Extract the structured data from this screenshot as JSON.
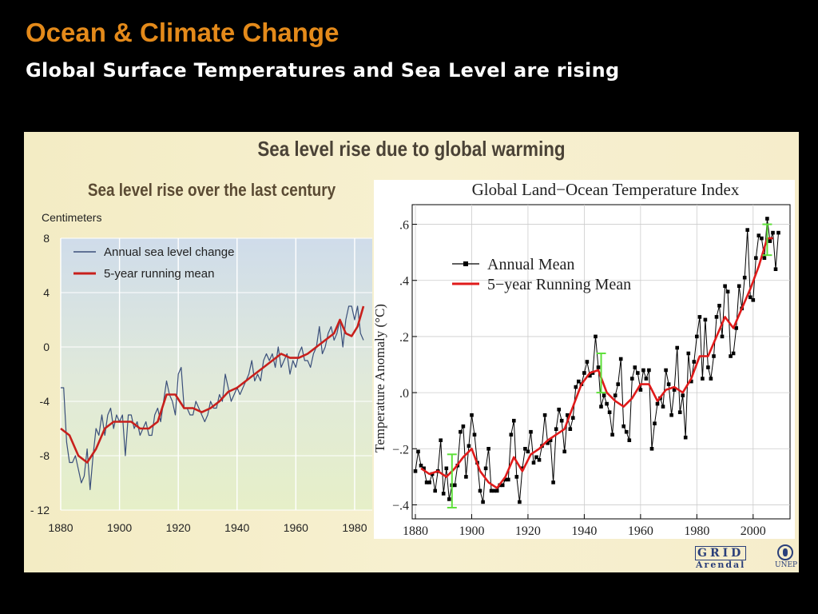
{
  "slide": {
    "title": "Ocean & Climate Change",
    "subtitle": "Global Surface Temperatures and Sea Level are rising"
  },
  "panel": {
    "title": "Sea level rise due to global warming",
    "logo": {
      "name": "GRID Arendal UNEP",
      "text": "GRID",
      "subtext": "Arendal",
      "unep": "UNEP",
      "icon": "unep-emblem-icon",
      "color": "#2a3f7a"
    }
  },
  "chart_data": [
    {
      "type": "line",
      "title": "Sea level rise over the last century",
      "ylabel": "Centimeters",
      "xlabel": "",
      "xlim": [
        1880,
        1986
      ],
      "ylim": [
        -12,
        8
      ],
      "xticks": [
        "1880",
        "1900",
        "1920",
        "1940",
        "1960",
        "1980"
      ],
      "yticks": [
        "8",
        "4",
        "0",
        "-4",
        "-8",
        "- 12"
      ],
      "grid": true,
      "legend": "top-left",
      "series": [
        {
          "name": "Annual sea level change",
          "color": "#3a4f7a",
          "x": [
            1880,
            1881,
            1882,
            1883,
            1884,
            1885,
            1886,
            1887,
            1888,
            1889,
            1890,
            1891,
            1892,
            1893,
            1894,
            1895,
            1896,
            1897,
            1898,
            1899,
            1900,
            1901,
            1902,
            1903,
            1904,
            1905,
            1906,
            1907,
            1908,
            1909,
            1910,
            1911,
            1912,
            1913,
            1914,
            1915,
            1916,
            1917,
            1918,
            1919,
            1920,
            1921,
            1922,
            1923,
            1924,
            1925,
            1926,
            1927,
            1928,
            1929,
            1930,
            1931,
            1932,
            1933,
            1934,
            1935,
            1936,
            1937,
            1938,
            1939,
            1940,
            1941,
            1942,
            1943,
            1944,
            1945,
            1946,
            1947,
            1948,
            1949,
            1950,
            1951,
            1952,
            1953,
            1954,
            1955,
            1956,
            1957,
            1958,
            1959,
            1960,
            1961,
            1962,
            1963,
            1964,
            1965,
            1966,
            1967,
            1968,
            1969,
            1970,
            1971,
            1972,
            1973,
            1974,
            1975,
            1976,
            1977,
            1978,
            1979,
            1980,
            1981,
            1982,
            1983
          ],
          "values": [
            -3,
            -3,
            -7,
            -8.5,
            -8.5,
            -8,
            -9,
            -10,
            -9.5,
            -7.5,
            -10.5,
            -8,
            -6,
            -6.5,
            -5,
            -6.5,
            -5,
            -4.5,
            -6,
            -5,
            -5.5,
            -5,
            -8,
            -5,
            -5,
            -6,
            -5.5,
            -6.5,
            -6,
            -5.5,
            -6.5,
            -6.5,
            -5,
            -4.5,
            -5.5,
            -4,
            -2.5,
            -3.5,
            -4,
            -5,
            -2,
            -1.5,
            -4.5,
            -4.5,
            -5,
            -5,
            -4,
            -4.5,
            -5,
            -5.5,
            -5,
            -4,
            -4.5,
            -4.5,
            -3.5,
            -4,
            -2,
            -3,
            -4,
            -3.5,
            -3,
            -3.5,
            -3,
            -2.5,
            -2,
            -1,
            -2.5,
            -2,
            -2.5,
            -1,
            -0.5,
            -1,
            -0.5,
            -1.5,
            0,
            -1.5,
            -1,
            -0.5,
            -2,
            -1,
            -1.5,
            -0.5,
            0,
            -1,
            -1,
            -1.5,
            -0.5,
            0,
            1.5,
            -0.5,
            0,
            1,
            1.5,
            0.5,
            1,
            2,
            0,
            2,
            3,
            3,
            2,
            3,
            1,
            0.5
          ]
        },
        {
          "name": "5-year running mean",
          "color": "#c8201c",
          "x": [
            1880,
            1883,
            1886,
            1889,
            1892,
            1895,
            1898,
            1901,
            1904,
            1907,
            1910,
            1913,
            1916,
            1919,
            1922,
            1925,
            1928,
            1931,
            1934,
            1937,
            1940,
            1943,
            1946,
            1949,
            1952,
            1955,
            1958,
            1961,
            1964,
            1967,
            1970,
            1973,
            1975,
            1977,
            1979,
            1981,
            1983
          ],
          "values": [
            -6,
            -6.5,
            -8,
            -8.5,
            -7.5,
            -6,
            -5.5,
            -5.5,
            -5.5,
            -6,
            -6,
            -5.5,
            -3.5,
            -3.5,
            -4.5,
            -4.5,
            -4.8,
            -4.5,
            -4,
            -3.3,
            -3,
            -2.5,
            -2,
            -1.5,
            -1,
            -0.5,
            -0.8,
            -0.8,
            -0.5,
            0,
            0.5,
            1,
            2,
            1,
            0.8,
            1.5,
            3
          ]
        }
      ]
    },
    {
      "type": "line",
      "title": "Global Land−Ocean Temperature Index",
      "ylabel": "Temperature Anomaly (°C)",
      "xlabel": "",
      "xlim": [
        1880,
        2010
      ],
      "ylim": [
        -0.45,
        0.67
      ],
      "xticks": [
        "1880",
        "1900",
        "1920",
        "1940",
        "1960",
        "1980",
        "2000"
      ],
      "yticks": [
        ".6",
        ".4",
        ".2",
        ".0",
        "−.2",
        "−.4"
      ],
      "grid": true,
      "legend": "top-left",
      "uncertainty_bars": [
        {
          "x": 1893,
          "low": -0.41,
          "high": -0.22
        },
        {
          "x": 1946,
          "low": 0.0,
          "high": 0.14
        },
        {
          "x": 2005,
          "low": 0.49,
          "high": 0.6
        }
      ],
      "series": [
        {
          "name": "Annual Mean",
          "color": "#000000",
          "x": [
            1880,
            1881,
            1882,
            1883,
            1884,
            1885,
            1886,
            1887,
            1888,
            1889,
            1890,
            1891,
            1892,
            1893,
            1894,
            1895,
            1896,
            1897,
            1898,
            1899,
            1900,
            1901,
            1902,
            1903,
            1904,
            1905,
            1906,
            1907,
            1908,
            1909,
            1910,
            1911,
            1912,
            1913,
            1914,
            1915,
            1916,
            1917,
            1918,
            1919,
            1920,
            1921,
            1922,
            1923,
            1924,
            1925,
            1926,
            1927,
            1928,
            1929,
            1930,
            1931,
            1932,
            1933,
            1934,
            1935,
            1936,
            1937,
            1938,
            1939,
            1940,
            1941,
            1942,
            1943,
            1944,
            1945,
            1946,
            1947,
            1948,
            1949,
            1950,
            1951,
            1952,
            1953,
            1954,
            1955,
            1956,
            1957,
            1958,
            1959,
            1960,
            1961,
            1962,
            1963,
            1964,
            1965,
            1966,
            1967,
            1968,
            1969,
            1970,
            1971,
            1972,
            1973,
            1974,
            1975,
            1976,
            1977,
            1978,
            1979,
            1980,
            1981,
            1982,
            1983,
            1984,
            1985,
            1986,
            1987,
            1988,
            1989,
            1990,
            1991,
            1992,
            1993,
            1994,
            1995,
            1996,
            1997,
            1998,
            1999,
            2000,
            2001,
            2002,
            2003,
            2004,
            2005,
            2006,
            2007,
            2008,
            2009
          ],
          "values": [
            -0.28,
            -0.21,
            -0.26,
            -0.27,
            -0.32,
            -0.32,
            -0.29,
            -0.35,
            -0.28,
            -0.17,
            -0.36,
            -0.27,
            -0.38,
            -0.33,
            -0.33,
            -0.26,
            -0.14,
            -0.12,
            -0.3,
            -0.19,
            -0.08,
            -0.15,
            -0.25,
            -0.35,
            -0.39,
            -0.27,
            -0.2,
            -0.35,
            -0.35,
            -0.35,
            -0.33,
            -0.33,
            -0.31,
            -0.31,
            -0.15,
            -0.1,
            -0.3,
            -0.39,
            -0.27,
            -0.2,
            -0.21,
            -0.14,
            -0.25,
            -0.23,
            -0.24,
            -0.19,
            -0.08,
            -0.18,
            -0.17,
            -0.32,
            -0.13,
            -0.06,
            -0.1,
            -0.21,
            -0.08,
            -0.13,
            -0.09,
            0.02,
            0.04,
            0.03,
            0.07,
            0.11,
            0.06,
            0.07,
            0.2,
            0.09,
            -0.05,
            -0.01,
            -0.04,
            -0.07,
            -0.15,
            -0.01,
            0.03,
            0.12,
            -0.12,
            -0.14,
            -0.17,
            0.05,
            0.09,
            0.07,
            0.01,
            0.08,
            0.05,
            0.08,
            -0.2,
            -0.11,
            -0.04,
            -0.02,
            -0.05,
            0.08,
            0.03,
            -0.08,
            0.01,
            0.16,
            -0.07,
            -0.01,
            -0.16,
            0.14,
            0.04,
            0.11,
            0.2,
            0.27,
            0.05,
            0.26,
            0.09,
            0.05,
            0.13,
            0.27,
            0.31,
            0.2,
            0.38,
            0.36,
            0.13,
            0.14,
            0.23,
            0.38,
            0.3,
            0.41,
            0.58,
            0.34,
            0.33,
            0.48,
            0.56,
            0.55,
            0.48,
            0.62,
            0.54,
            0.57,
            0.44,
            0.57
          ]
        },
        {
          "name": "5−year Running Mean",
          "color": "#e01a1a",
          "x": [
            1882,
            1885,
            1888,
            1891,
            1894,
            1897,
            1900,
            1903,
            1906,
            1909,
            1912,
            1915,
            1918,
            1921,
            1924,
            1927,
            1930,
            1933,
            1936,
            1939,
            1942,
            1945,
            1948,
            1951,
            1954,
            1957,
            1960,
            1963,
            1966,
            1969,
            1972,
            1975,
            1978,
            1981,
            1984,
            1987,
            1990,
            1993,
            1996,
            1999,
            2002,
            2005,
            2007
          ],
          "values": [
            -0.27,
            -0.29,
            -0.28,
            -0.3,
            -0.27,
            -0.23,
            -0.2,
            -0.28,
            -0.32,
            -0.34,
            -0.3,
            -0.23,
            -0.28,
            -0.22,
            -0.2,
            -0.17,
            -0.15,
            -0.13,
            -0.05,
            0.03,
            0.07,
            0.08,
            0.0,
            -0.03,
            -0.05,
            -0.02,
            0.03,
            0.03,
            -0.03,
            0.01,
            0.02,
            0.0,
            0.05,
            0.13,
            0.13,
            0.2,
            0.27,
            0.23,
            0.3,
            0.37,
            0.45,
            0.55,
            0.55
          ]
        }
      ]
    }
  ]
}
